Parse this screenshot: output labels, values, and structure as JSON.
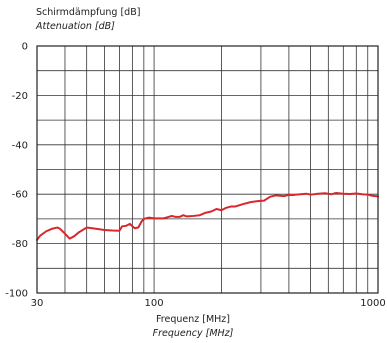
{
  "chart_data": {
    "type": "line",
    "ylabel": "Schirmdämpfung [dB]",
    "ylabel_sub": "Attenuation [dB]",
    "xlabel": "Frequenz [MHz]",
    "xlabel_sub": "Frequency [MHz]",
    "x_scale": "log",
    "xlim": [
      30,
      1000
    ],
    "ylim": [
      -100,
      0
    ],
    "x_tick_labels": [
      "30",
      "100",
      "1000"
    ],
    "y_tick_labels": [
      "0",
      "-20",
      "-40",
      "-60",
      "-80",
      "-100"
    ],
    "grid": true,
    "line_color": "#d9282b",
    "series": [
      {
        "x": [
          30,
          31,
          33,
          35,
          37,
          38,
          40,
          42,
          44,
          46,
          48,
          50,
          55,
          60,
          65,
          70,
          72,
          75,
          78,
          80,
          82,
          85,
          88,
          90,
          95,
          100,
          110,
          120,
          125,
          130,
          135,
          140,
          150,
          160,
          170,
          180,
          190,
          200,
          210,
          220,
          230,
          250,
          270,
          290,
          310,
          330,
          350,
          380,
          400,
          420,
          450,
          480,
          500,
          540,
          580,
          620,
          650,
          700,
          750,
          800,
          850,
          900,
          950,
          1000
        ],
        "y": [
          -78.5,
          -76.8,
          -75.0,
          -74.0,
          -73.5,
          -74.0,
          -76.0,
          -78.0,
          -77.0,
          -75.5,
          -74.5,
          -73.5,
          -74.0,
          -74.5,
          -74.7,
          -74.8,
          -73.0,
          -72.8,
          -72.0,
          -73.0,
          -73.8,
          -73.5,
          -71.0,
          -70.0,
          -69.5,
          -69.8,
          -69.8,
          -68.8,
          -69.2,
          -69.2,
          -68.5,
          -69.0,
          -68.8,
          -68.5,
          -67.5,
          -67.0,
          -66.0,
          -66.5,
          -65.5,
          -65.0,
          -65.0,
          -64.0,
          -63.2,
          -62.8,
          -62.6,
          -61.0,
          -60.5,
          -60.8,
          -60.3,
          -60.3,
          -60.0,
          -59.8,
          -60.2,
          -59.8,
          -59.6,
          -60.0,
          -59.5,
          -59.8,
          -59.9,
          -59.7,
          -60.0,
          -60.2,
          -60.7,
          -60.9
        ]
      }
    ]
  }
}
